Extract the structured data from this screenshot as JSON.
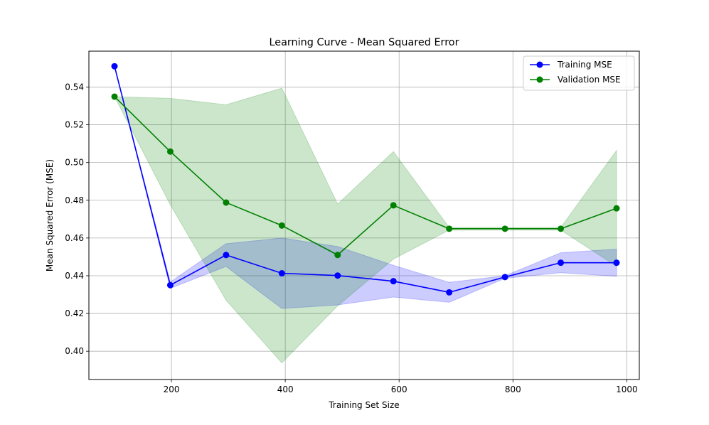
{
  "chart_data": {
    "type": "line",
    "title": "Learning Curve - Mean Squared Error",
    "xlabel": "Training Set Size",
    "ylabel": "Mean Squared Error (MSE)",
    "xlim": [
      55,
      1022
    ],
    "ylim": [
      0.385,
      0.559
    ],
    "xticks": [
      200,
      400,
      600,
      800,
      1000
    ],
    "yticks": [
      0.4,
      0.42,
      0.44,
      0.46,
      0.48,
      0.5,
      0.52,
      0.54
    ],
    "grid": true,
    "legend_position": "top-right",
    "x": [
      100,
      198,
      296,
      394,
      492,
      590,
      688,
      786,
      884,
      982
    ],
    "series": [
      {
        "name": "Training MSE",
        "color": "#0000ff",
        "band_color": "#0000ff",
        "values": [
          0.551,
          0.435,
          0.451,
          0.4413,
          0.4401,
          0.4371,
          0.4312,
          0.4393,
          0.4469,
          0.4469
        ],
        "lower": [
          0.551,
          0.4333,
          0.4449,
          0.4226,
          0.4245,
          0.4287,
          0.4259,
          0.4386,
          0.4416,
          0.4397
        ],
        "upper": [
          0.551,
          0.4367,
          0.457,
          0.46,
          0.4555,
          0.4455,
          0.4365,
          0.44,
          0.4522,
          0.4541
        ]
      },
      {
        "name": "Validation MSE",
        "color": "#008000",
        "band_color": "#008000",
        "values": [
          0.5349,
          0.5058,
          0.4788,
          0.4666,
          0.451,
          0.4773,
          0.4649,
          0.4649,
          0.4649,
          0.4757
        ],
        "lower": [
          0.5349,
          0.4776,
          0.427,
          0.3938,
          0.424,
          0.4488,
          0.4642,
          0.4642,
          0.4642,
          0.445
        ],
        "upper": [
          0.5349,
          0.534,
          0.5306,
          0.5394,
          0.478,
          0.5058,
          0.4656,
          0.4656,
          0.4656,
          0.5064
        ]
      }
    ]
  }
}
